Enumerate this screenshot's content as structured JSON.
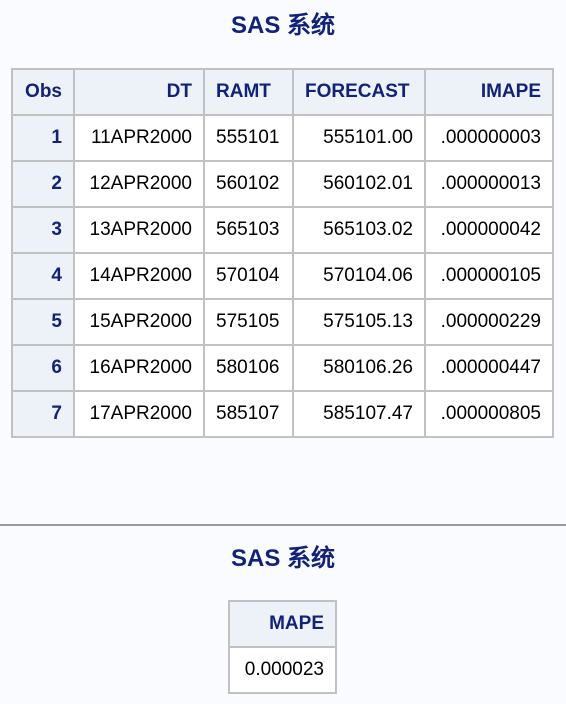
{
  "titles": [
    "SAS 系统",
    "SAS 系统"
  ],
  "main_table": {
    "headers": [
      "Obs",
      "DT",
      "RAMT",
      "FORECAST",
      "IMAPE"
    ],
    "rows": [
      [
        "1",
        "11APR2000",
        "555101",
        "555101.00",
        ".000000003"
      ],
      [
        "2",
        "12APR2000",
        "560102",
        "560102.01",
        ".000000013"
      ],
      [
        "3",
        "13APR2000",
        "565103",
        "565103.02",
        ".000000042"
      ],
      [
        "4",
        "14APR2000",
        "570104",
        "570104.06",
        ".000000105"
      ],
      [
        "5",
        "15APR2000",
        "575105",
        "575105.13",
        ".000000229"
      ],
      [
        "6",
        "16APR2000",
        "580106",
        "580106.26",
        ".000000447"
      ],
      [
        "7",
        "17APR2000",
        "585107",
        "585107.47",
        ".000000805"
      ]
    ]
  },
  "mape_table": {
    "headers": [
      "MAPE"
    ],
    "rows": [
      [
        "0.000023"
      ]
    ]
  },
  "colors": {
    "title": "#112277",
    "header_bg": "#edf2f9",
    "page_bg": "#fafbfe",
    "border": "#c1c1c1"
  }
}
